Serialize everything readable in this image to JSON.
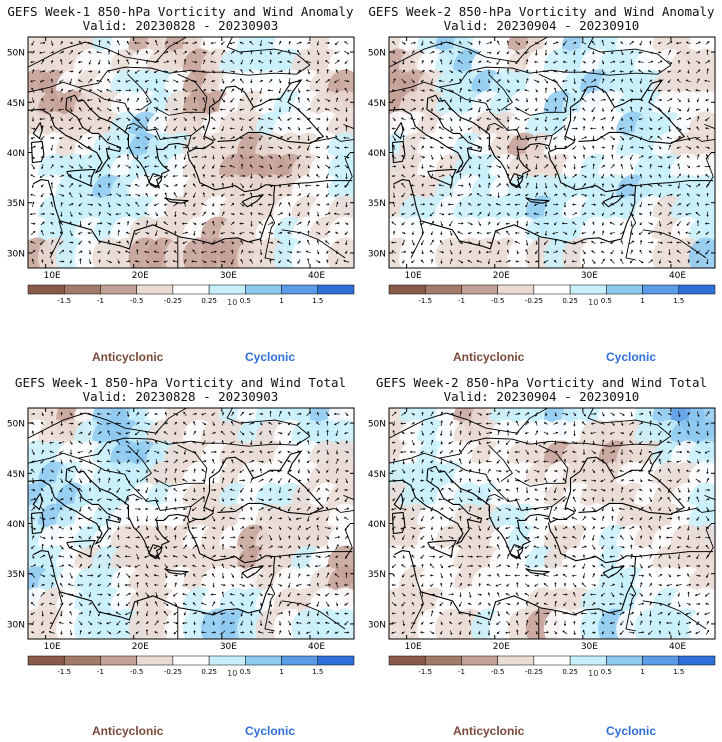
{
  "colors": {
    "neg3": "#8a5a4a",
    "neg2": "#a47a6b",
    "neg1": "#c4a196",
    "neg0": "#eadbd3",
    "zero": "#ffffff",
    "pos0": "#c9f0fa",
    "pos1": "#8ec9f0",
    "pos2": "#5a9ce8",
    "pos3": "#2f6fd8",
    "anticyclonic": "#7a4a3a",
    "cyclonic": "#2e6fd8"
  },
  "legend": {
    "anticyclonic": "Anticyclonic",
    "cyclonic": "Cyclonic"
  },
  "chart_data": [
    {
      "type": "heatmap",
      "title": "GEFS Week-1 850-hPa Vorticity and Wind Anomaly",
      "subtitle": "Valid: 20230828 - 20230903",
      "x_ticks": [
        "10E",
        "20E",
        "30E",
        "40E"
      ],
      "y_ticks": [
        "50N",
        "45N",
        "40N",
        "35N",
        "30N"
      ],
      "colorbar_ticks": [
        "-1.5",
        "-1",
        "-0.5",
        "-0.25",
        "0.25",
        "0.5",
        "1",
        "1.5"
      ],
      "colorbar_scale": "10",
      "grid_seed": 11
    },
    {
      "type": "heatmap",
      "title": "GEFS Week-2 850-hPa Vorticity and Wind Anomaly",
      "subtitle": "Valid: 20230904 - 20230910",
      "x_ticks": [
        "10E",
        "20E",
        "30E",
        "40E"
      ],
      "y_ticks": [
        "50N",
        "45N",
        "40N",
        "35N",
        "30N"
      ],
      "colorbar_ticks": [
        "-1.5",
        "-1",
        "-0.5",
        "-0.25",
        "0.25",
        "0.5",
        "1",
        "1.5"
      ],
      "colorbar_scale": "10",
      "grid_seed": 29
    },
    {
      "type": "heatmap",
      "title": "GEFS Week-1 850-hPa Vorticity and Wind Total",
      "subtitle": "Valid: 20230828 - 20230903",
      "x_ticks": [
        "10E",
        "20E",
        "30E",
        "40E"
      ],
      "y_ticks": [
        "50N",
        "45N",
        "40N",
        "35N",
        "30N"
      ],
      "colorbar_ticks": [
        "-1.5",
        "-1",
        "-0.5",
        "-0.25",
        "0.25",
        "0.5",
        "1",
        "1.5"
      ],
      "colorbar_scale": "10",
      "grid_seed": 47
    },
    {
      "type": "heatmap",
      "title": "GEFS Week-2 850-hPa Vorticity and Wind Total",
      "subtitle": "Valid: 20230904 - 20230910",
      "x_ticks": [
        "10E",
        "20E",
        "30E",
        "40E"
      ],
      "y_ticks": [
        "50N",
        "45N",
        "40N",
        "35N",
        "30N"
      ],
      "colorbar_ticks": [
        "-1.5",
        "-1",
        "-0.5",
        "-0.25",
        "0.25",
        "0.5",
        "1",
        "1.5"
      ],
      "colorbar_scale": "10",
      "grid_seed": 73
    }
  ]
}
